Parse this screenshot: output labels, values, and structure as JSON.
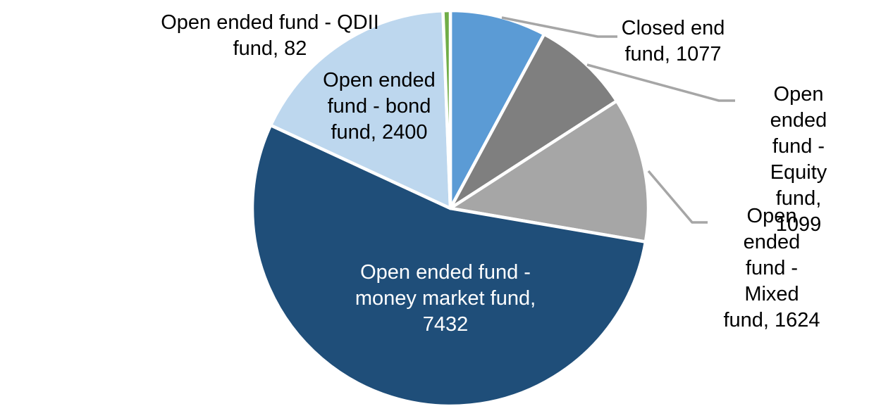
{
  "chart_data": {
    "type": "pie",
    "title": "",
    "legend_position": "none",
    "start_angle_deg": 0,
    "direction": "clockwise",
    "categories": [
      "Closed end fund",
      "Open ended fund - Equity fund",
      "Open ended fund - Mixed fund",
      "Open ended fund - money market fund",
      "Open ended fund - bond fund",
      "Open ended fund - QDII fund"
    ],
    "values": [
      1077,
      1099,
      1624,
      7432,
      2400,
      82
    ],
    "slices": [
      {
        "id": "closed-end-fund",
        "label": "Closed end fund",
        "value": 1077,
        "color": "#5B9BD5"
      },
      {
        "id": "equity-fund",
        "label": "Open ended fund - Equity fund",
        "value": 1099,
        "color": "#7F7F7F"
      },
      {
        "id": "mixed-fund",
        "label": "Open ended fund - Mixed fund",
        "value": 1624,
        "color": "#A6A6A6"
      },
      {
        "id": "money-market-fund",
        "label": "Open ended fund - money market fund",
        "value": 7432,
        "color": "#1F4E79"
      },
      {
        "id": "bond-fund",
        "label": "Open ended fund - bond fund",
        "value": 2400,
        "color": "#BDD7EE"
      },
      {
        "id": "qdii-fund",
        "label": "Open ended fund - QDII fund",
        "value": 82,
        "color": "#70AD47"
      }
    ],
    "labels": {
      "closed_end": {
        "text": "Closed end\nfund, 1077",
        "color": "#000000"
      },
      "equity": {
        "text": "Open ended\nfund - Equity\nfund, 1099",
        "color": "#000000"
      },
      "mixed": {
        "text": "Open ended\nfund - Mixed\nfund, 1624",
        "color": "#000000"
      },
      "money_market": {
        "text": "Open ended fund -\nmoney market fund,\n7432",
        "color": "#FFFFFF"
      },
      "bond": {
        "text": "Open ended\nfund - bond\nfund, 2400",
        "color": "#000000"
      },
      "qdii": {
        "text": "Open ended fund - QDII\nfund, 82",
        "color": "#000000"
      }
    },
    "colors": {
      "background": "#FFFFFF",
      "slice_border": "#FFFFFF",
      "leader_line": "#A6A6A6"
    }
  }
}
